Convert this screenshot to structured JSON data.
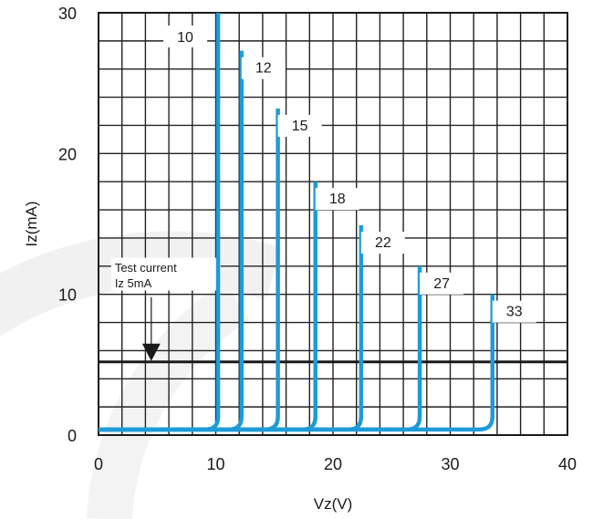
{
  "chart_data": {
    "type": "line",
    "title": "",
    "xlabel": "Vz(V)",
    "ylabel": "Iz(mA)",
    "xlim": [
      0,
      40
    ],
    "ylim": [
      0,
      30
    ],
    "x_ticks": [
      "0",
      "10",
      "20",
      "30",
      "40"
    ],
    "y_ticks": [
      "0",
      "10",
      "20",
      "30"
    ],
    "grid": true,
    "line_color": "#1e9bd7",
    "series": [
      {
        "name": "10",
        "vz": 10.2,
        "imax": 30
      },
      {
        "name": "12",
        "vz": 12.2,
        "imax": 27.3
      },
      {
        "name": "15",
        "vz": 15.3,
        "imax": 23.2
      },
      {
        "name": "18",
        "vz": 18.5,
        "imax": 18.0
      },
      {
        "name": "22",
        "vz": 22.4,
        "imax": 14.9
      },
      {
        "name": "27",
        "vz": 27.4,
        "imax": 12.0
      },
      {
        "name": "33",
        "vz": 33.6,
        "imax": 10.0
      }
    ],
    "test_current": {
      "value": 5.2,
      "label_line1": "Test current",
      "label_line2": "Iz 5mA",
      "arrow_x": 4.5
    }
  }
}
